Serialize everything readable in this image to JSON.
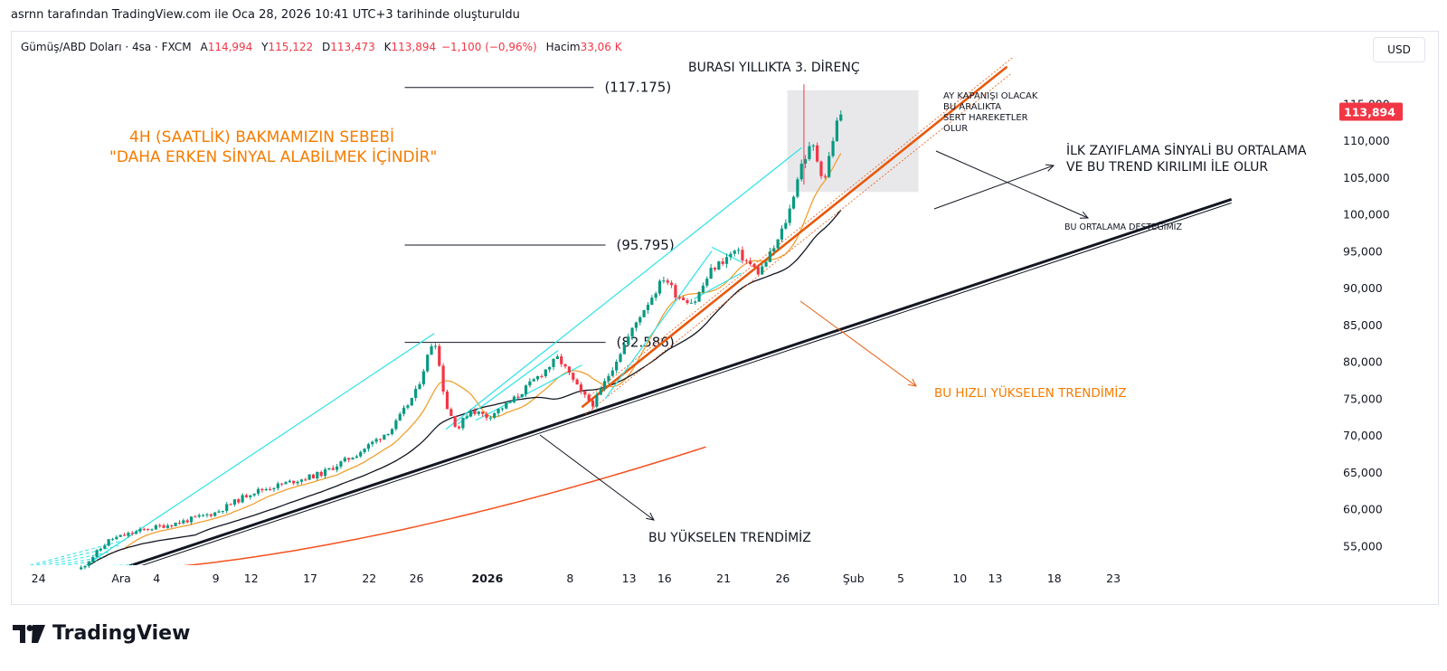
{
  "caption": "asrnn tarafından TradingView.com ile Oca 28, 2026 10:41 UTC+3 tarihinde oluşturuldu",
  "legend": {
    "symbol": "Gümüş/ABD Doları · 4sa · FXCM",
    "open_label": "A",
    "open": "114,994",
    "high_label": "Y",
    "high": "115,122",
    "low_label": "D",
    "low": "113,473",
    "close_label": "K",
    "close": "113,894",
    "change": "−1,100 (−0,96%)",
    "volume_label": "Hacim",
    "volume": "33,06 K"
  },
  "currency_button": "USD",
  "logo": "TradingView",
  "colors": {
    "candle_up": "#089981",
    "candle_down": "#f23645",
    "cyan": "#2de2e6",
    "orange": "#e8590c",
    "orange_text": "#f57c00",
    "ema_fast": "#f0a030",
    "ma_red": "#f4511e",
    "price_tag": "#f23645"
  },
  "chart_data": {
    "type": "candlestick",
    "title": "Gümüş/ABD Doları · 4sa · FXCM",
    "ylim": [
      50000,
      118500
    ],
    "y_ticks": [
      "55,000",
      "60,000",
      "65,000",
      "70,000",
      "75,000",
      "80,000",
      "85,000",
      "90,000",
      "95,000",
      "100,000",
      "105,000",
      "110,000",
      "115,000"
    ],
    "x_ticks": [
      {
        "label": "24",
        "day": -6,
        "bold": false
      },
      {
        "label": "Ara",
        "day": 1,
        "bold": false
      },
      {
        "label": "4",
        "day": 4,
        "bold": false
      },
      {
        "label": "9",
        "day": 9,
        "bold": false
      },
      {
        "label": "12",
        "day": 12,
        "bold": false
      },
      {
        "label": "17",
        "day": 17,
        "bold": false
      },
      {
        "label": "22",
        "day": 22,
        "bold": false
      },
      {
        "label": "26",
        "day": 26,
        "bold": false
      },
      {
        "label": "2026",
        "day": 32,
        "bold": true
      },
      {
        "label": "8",
        "day": 39,
        "bold": false
      },
      {
        "label": "13",
        "day": 44,
        "bold": false
      },
      {
        "label": "16",
        "day": 47,
        "bold": false
      },
      {
        "label": "21",
        "day": 52,
        "bold": false
      },
      {
        "label": "26",
        "day": 57,
        "bold": false
      },
      {
        "label": "Şub",
        "day": 63,
        "bold": false
      },
      {
        "label": "5",
        "day": 67,
        "bold": false
      },
      {
        "label": "10",
        "day": 72,
        "bold": false
      },
      {
        "label": "13",
        "day": 75,
        "bold": false
      },
      {
        "label": "18",
        "day": 80,
        "bold": false
      },
      {
        "label": "23",
        "day": 85,
        "bold": false
      }
    ],
    "price_path": [
      {
        "day": -2.5,
        "price": 51800
      },
      {
        "day": 0,
        "price": 55800
      },
      {
        "day": 3,
        "price": 57200
      },
      {
        "day": 6,
        "price": 58200
      },
      {
        "day": 9,
        "price": 59500
      },
      {
        "day": 12,
        "price": 62200
      },
      {
        "day": 15,
        "price": 63500
      },
      {
        "day": 18,
        "price": 64800
      },
      {
        "day": 21,
        "price": 67500
      },
      {
        "day": 24,
        "price": 71000
      },
      {
        "day": 26,
        "price": 76000
      },
      {
        "day": 27.5,
        "price": 83500
      },
      {
        "day": 28.5,
        "price": 74000
      },
      {
        "day": 29.5,
        "price": 70800
      },
      {
        "day": 30.5,
        "price": 73500
      },
      {
        "day": 32,
        "price": 72500
      },
      {
        "day": 34,
        "price": 74500
      },
      {
        "day": 36,
        "price": 77500
      },
      {
        "day": 38,
        "price": 80500
      },
      {
        "day": 40,
        "price": 75500
      },
      {
        "day": 41,
        "price": 74200
      },
      {
        "day": 43,
        "price": 80500
      },
      {
        "day": 45,
        "price": 86500
      },
      {
        "day": 47,
        "price": 91500
      },
      {
        "day": 48,
        "price": 89000
      },
      {
        "day": 49.5,
        "price": 88000
      },
      {
        "day": 51,
        "price": 92500
      },
      {
        "day": 53,
        "price": 95000
      },
      {
        "day": 55,
        "price": 92000
      },
      {
        "day": 56.5,
        "price": 96000
      },
      {
        "day": 57.5,
        "price": 100000
      },
      {
        "day": 58.5,
        "price": 106500
      },
      {
        "day": 59.5,
        "price": 109500
      },
      {
        "day": 60.5,
        "price": 104500
      },
      {
        "day": 61.5,
        "price": 112000
      },
      {
        "day": 62,
        "price": 113894
      }
    ],
    "levels": [
      {
        "price": 117175,
        "label": "(117.175)",
        "day_start": 25,
        "day_end": 41
      },
      {
        "price": 95795,
        "label": "(95.795)",
        "day_start": 25,
        "day_end": 42
      },
      {
        "price": 82586,
        "label": "(82.586)",
        "day_start": 25,
        "day_end": 42
      }
    ],
    "trendlines": [
      {
        "name": "black-uptrend",
        "from": {
          "day": -1,
          "price": 50800
        },
        "to": {
          "day": 95,
          "price": 102000
        }
      },
      {
        "name": "orange-uptrend",
        "from": {
          "day": 40,
          "price": 73800
        },
        "to": {
          "day": 76,
          "price": 120000
        }
      }
    ],
    "price_tag": "113,894",
    "annotations": [
      "4H (SAATLİK) BAKMAMIZIN SEBEBİ",
      "\"DAHA ERKEN SİNYAL ALABİLMEK İÇİNDİR\"",
      "BURASI YILLIKTA 3. DİRENÇ",
      "AY KAPANIŞI OLACAK",
      "BU ARALIKTA",
      "SERT HAREKETLER",
      "OLUR",
      "İLK ZAYIFLAMA SİNYALİ BU ORTALAMA",
      "VE BU TREND KIRILIMI İLE OLUR",
      "BU ORTALAMA DESTEĞİMİZ",
      "BU HIZLI YÜKSELEN TRENDİMİZ",
      "BU YÜKSELEN TRENDİMİZ"
    ]
  }
}
